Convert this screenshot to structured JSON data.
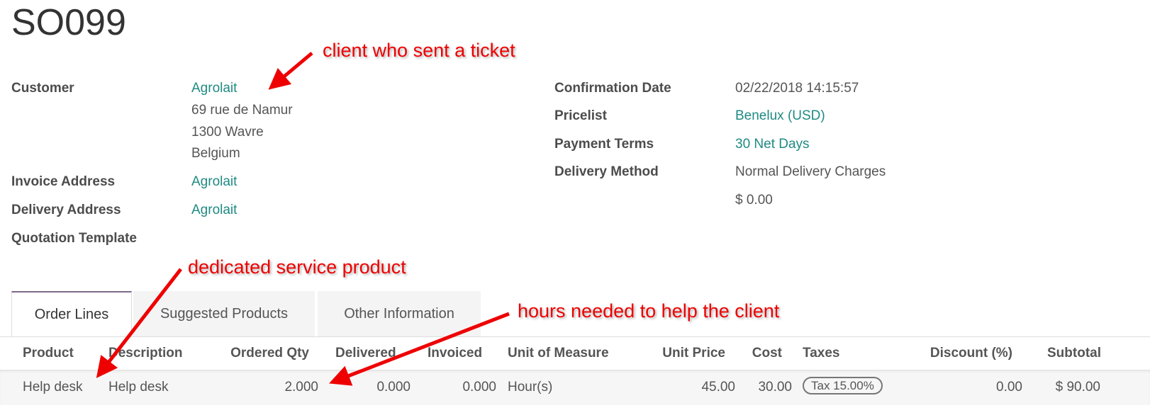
{
  "title": "SO099",
  "left_fields": [
    {
      "label": "Customer",
      "value": "Agrolait",
      "address": [
        "69 rue de Namur",
        "1300 Wavre",
        "Belgium"
      ]
    },
    {
      "label": "Invoice Address",
      "value": "Agrolait"
    },
    {
      "label": "Delivery Address",
      "value": "Agrolait"
    },
    {
      "label": "Quotation Template",
      "value": ""
    }
  ],
  "right_fields": [
    {
      "label": "Confirmation Date",
      "value": "02/22/2018 14:15:57"
    },
    {
      "label": "Pricelist",
      "value": "Benelux (USD)"
    },
    {
      "label": "Payment Terms",
      "value": "30 Net Days"
    },
    {
      "label": "Delivery Method",
      "value": "Normal Delivery Charges",
      "extra": "$ 0.00"
    }
  ],
  "tabs": [
    "Order Lines",
    "Suggested Products",
    "Other Information"
  ],
  "table": {
    "headers": [
      "Product",
      "Description",
      "Ordered Qty",
      "Delivered",
      "Invoiced",
      "Unit of Measure",
      "Unit Price",
      "Cost",
      "Taxes",
      "Discount (%)",
      "Subtotal"
    ],
    "rows": [
      [
        "Help desk",
        "Help desk",
        "2.000",
        "0.000",
        "0.000",
        "Hour(s)",
        "45.00",
        "30.00",
        "Tax 15.00%",
        "0.00",
        "$ 90.00"
      ]
    ]
  },
  "annotations": [
    "client who sent a ticket",
    "dedicated service product",
    "hours needed to help the client"
  ],
  "colors": {
    "link": "#1f8a83",
    "annotation": "#e00000",
    "tab_accent": "#7c6a87"
  }
}
